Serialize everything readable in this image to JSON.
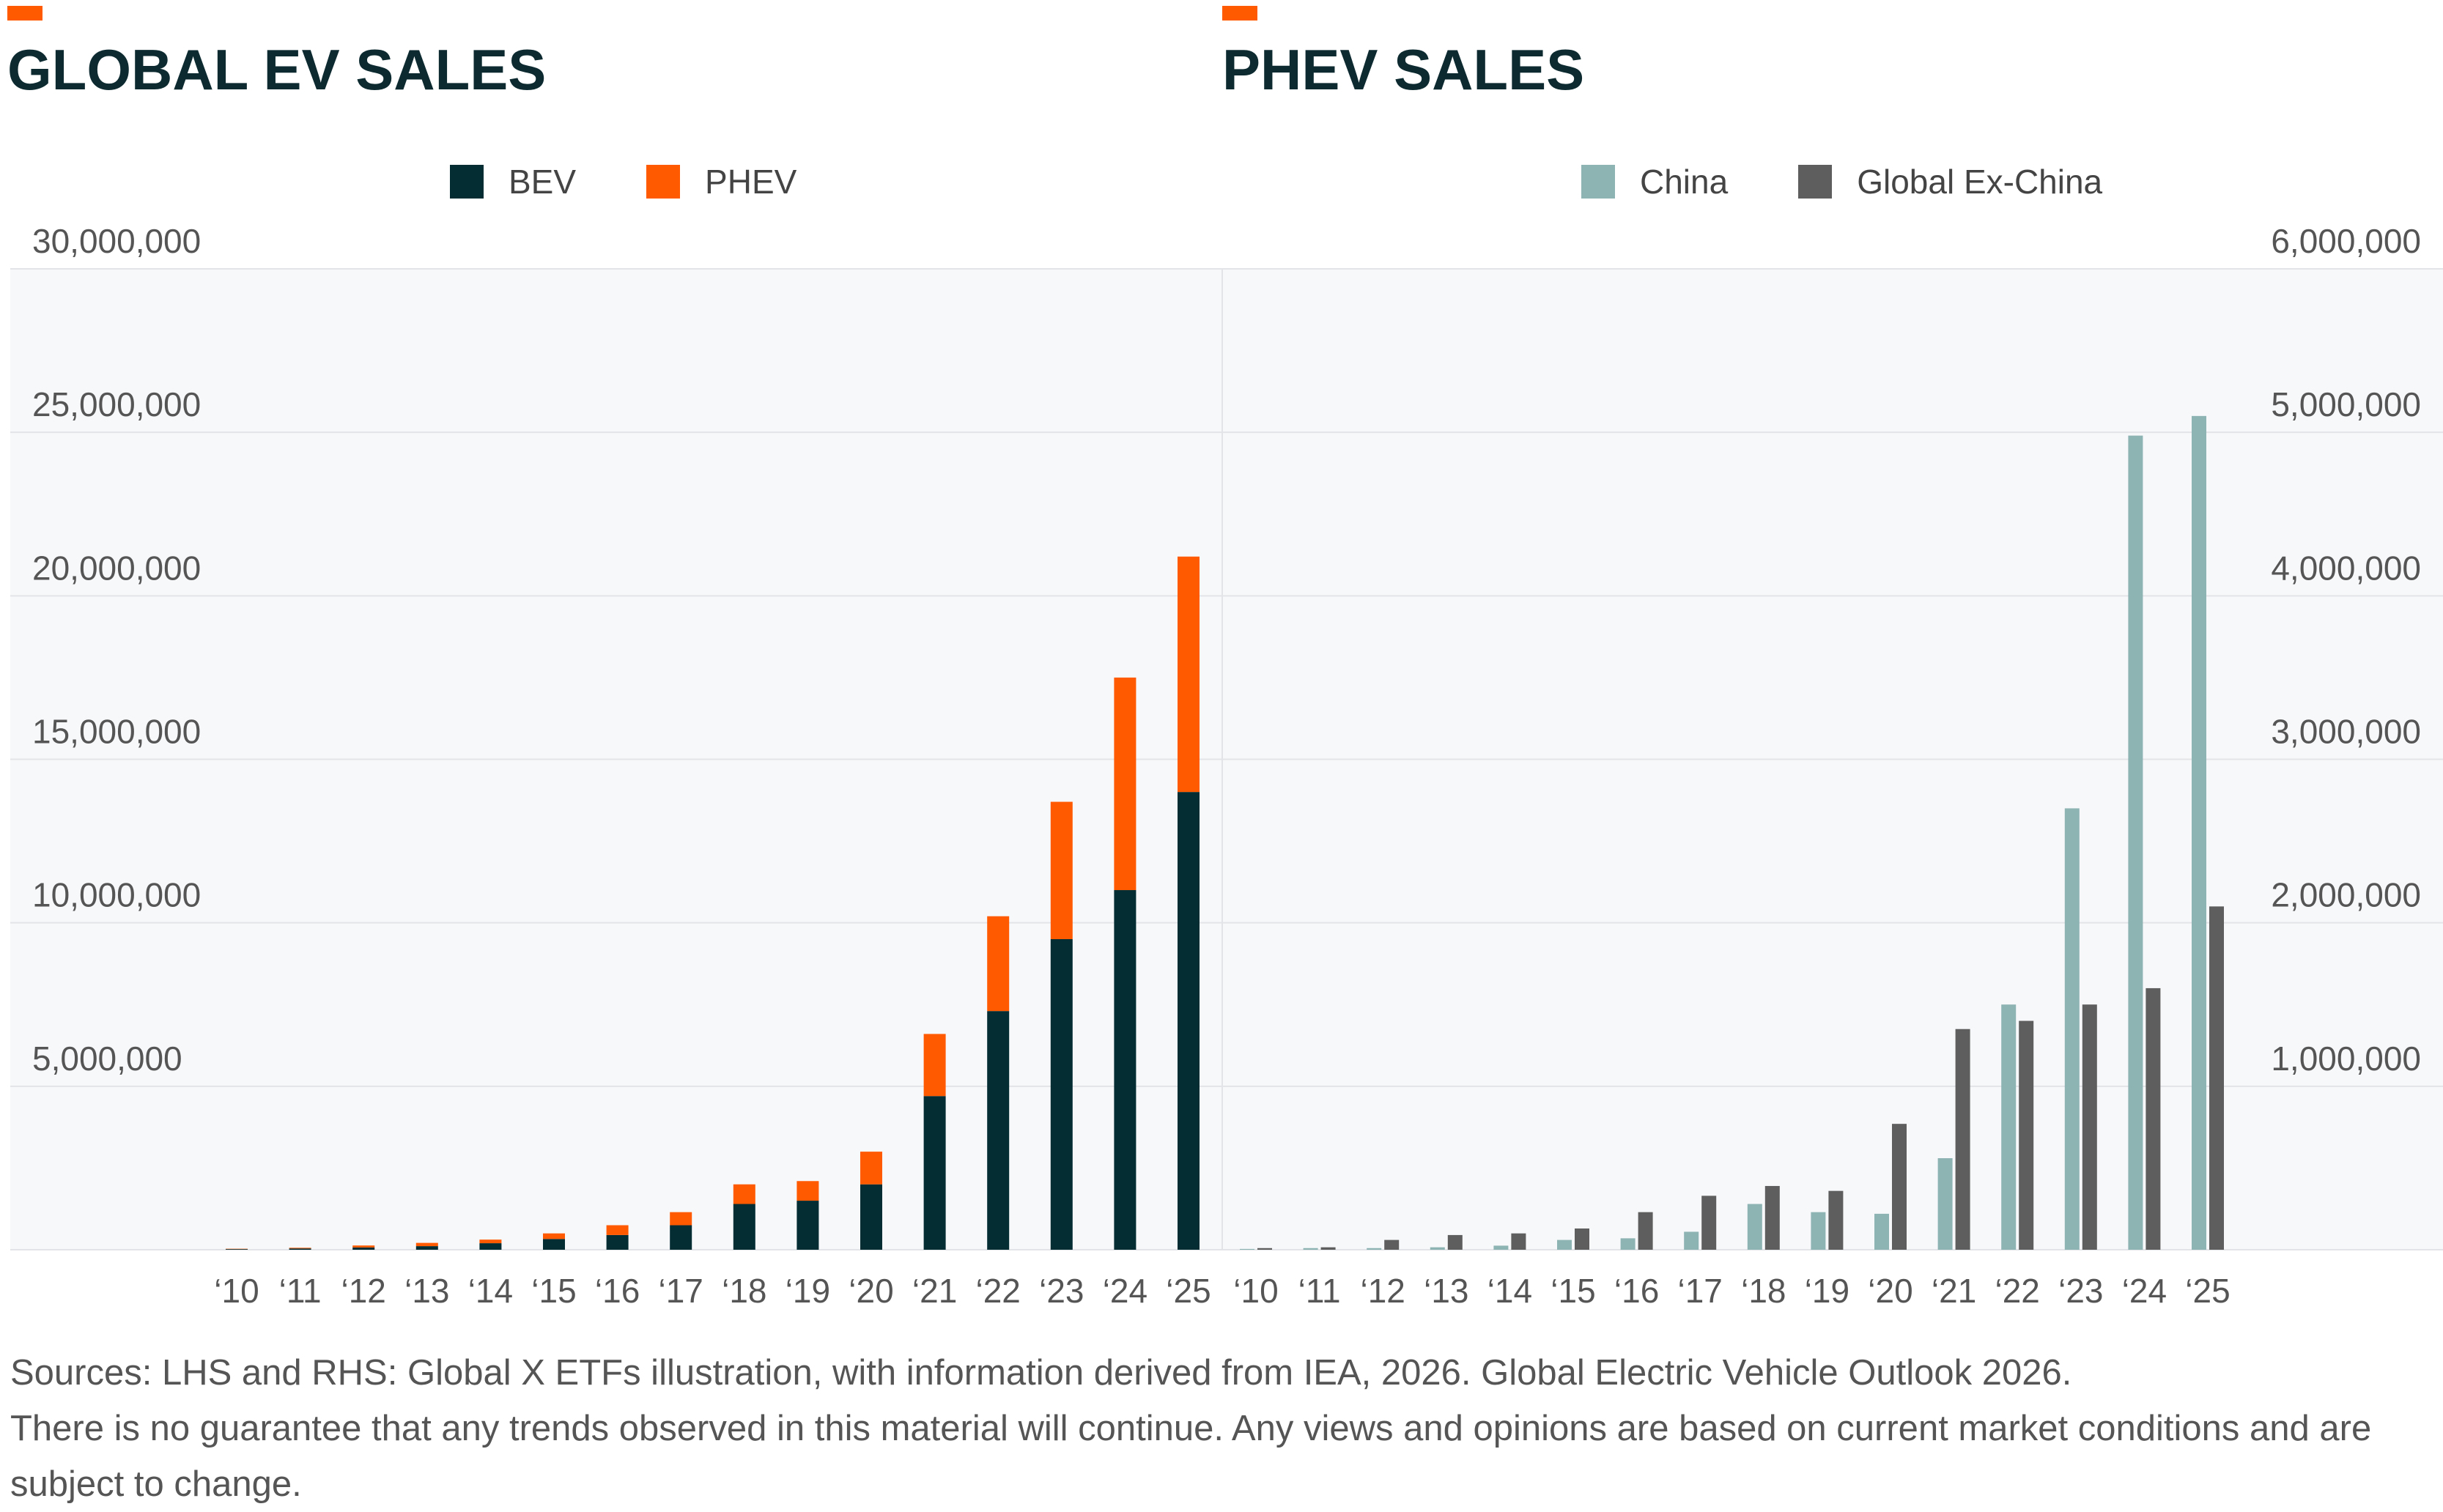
{
  "colors": {
    "accent": "#ff5a00",
    "title": "#0c2a30",
    "bev": "#032c33",
    "phev": "#ff5a00",
    "china": "#8eb3b3",
    "ex_china": "#5e5e5e",
    "plot_bg": "#f7f8fa",
    "grid": "#e2e4e7"
  },
  "left_panel": {
    "title": "GLOBAL EV SALES",
    "legend": [
      {
        "label": "BEV",
        "color": "#032c33"
      },
      {
        "label": "PHEV",
        "color": "#ff5a00"
      }
    ]
  },
  "right_panel": {
    "title": "PHEV SALES",
    "legend": [
      {
        "label": "China",
        "color": "#8eb3b3"
      },
      {
        "label": "Global Ex-China",
        "color": "#5e5e5e"
      }
    ]
  },
  "chart_data": [
    {
      "type": "bar",
      "stacked": true,
      "title": "GLOBAL EV SALES",
      "categories": [
        "‘10",
        "‘11",
        "‘12",
        "‘13",
        "‘14",
        "‘15",
        "‘16",
        "‘17",
        "‘18",
        "‘19",
        "‘20",
        "‘21",
        "‘22",
        "‘23",
        "‘24",
        "‘25"
      ],
      "series": [
        {
          "name": "BEV",
          "color": "#032c33",
          "values": [
            20000,
            40000,
            70000,
            110000,
            200000,
            330000,
            450000,
            750000,
            1400000,
            1500000,
            2000000,
            4700000,
            7300000,
            9500000,
            11000000,
            14000000
          ]
        },
        {
          "name": "PHEV",
          "color": "#ff5a00",
          "values": [
            10000,
            20000,
            60000,
            100000,
            110000,
            170000,
            300000,
            400000,
            600000,
            600000,
            1000000,
            1900000,
            2900000,
            4200000,
            6500000,
            7200000
          ]
        }
      ],
      "ylim": [
        0,
        30000000
      ],
      "yticks": [
        "",
        "5,000,000",
        "10,000,000",
        "15,000,000",
        "20,000,000",
        "25,000,000",
        "30,000,000"
      ],
      "axis_side": "left",
      "grid": true,
      "legend_position": "top"
    },
    {
      "type": "bar",
      "stacked": false,
      "title": "PHEV SALES",
      "categories": [
        "‘10",
        "‘11",
        "‘12",
        "‘13",
        "‘14",
        "‘15",
        "‘16",
        "‘17",
        "‘18",
        "‘19",
        "‘20",
        "‘21",
        "‘22",
        "‘23",
        "‘24",
        "‘25"
      ],
      "series": [
        {
          "name": "China",
          "color": "#8eb3b3",
          "values": [
            5000,
            10000,
            10000,
            15000,
            25000,
            60000,
            70000,
            110000,
            280000,
            230000,
            220000,
            560000,
            1500000,
            2700000,
            4980000,
            5100000
          ]
        },
        {
          "name": "Global Ex-China",
          "color": "#5e5e5e",
          "values": [
            10000,
            15000,
            60000,
            90000,
            100000,
            130000,
            230000,
            330000,
            390000,
            360000,
            770000,
            1350000,
            1400000,
            1500000,
            1600000,
            2100000
          ]
        }
      ],
      "ylim": [
        0,
        6000000
      ],
      "yticks": [
        "",
        "1,000,000",
        "2,000,000",
        "3,000,000",
        "4,000,000",
        "5,000,000",
        "6,000,000"
      ],
      "axis_side": "right",
      "grid": true,
      "legend_position": "top"
    }
  ],
  "sources": {
    "line1": "Sources: LHS and RHS: Global X ETFs illustration, with information derived from IEA, 2026. Global Electric Vehicle Outlook 2026.",
    "line2": "There is no guarantee that any trends observed in this material will continue. Any views and opinions are based on current market conditions and are subject to change."
  }
}
